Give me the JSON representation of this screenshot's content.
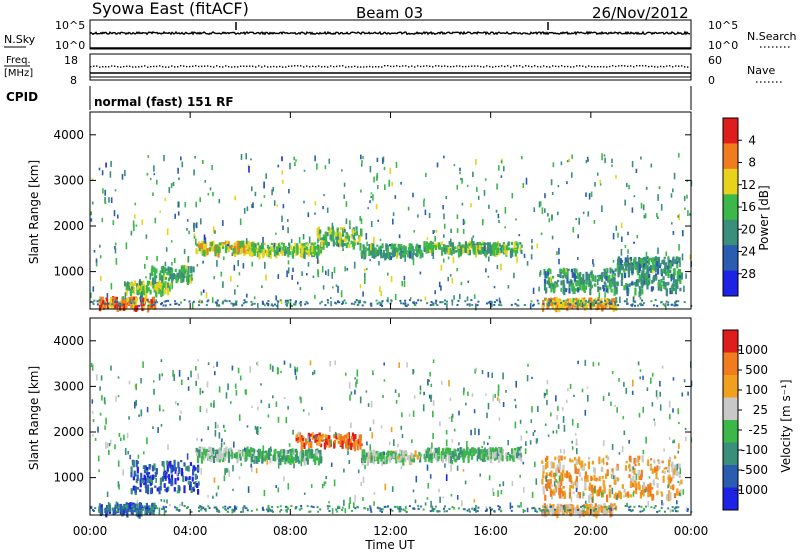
{
  "header": {
    "station": "Syowa East (fitACF)",
    "beam": "Beam 03",
    "date": "26/Nov/2012",
    "mode": "normal (fast) 151 RF"
  },
  "panels": {
    "noise": {
      "left_label": "N.Sky",
      "right_label": "N.Search",
      "left_ticks": [
        "10^5",
        "10^0"
      ],
      "right_ticks": [
        "10^5",
        "10^0"
      ]
    },
    "freq": {
      "left_label_top": "Freq.",
      "left_label_bottom": "[MHz]",
      "right_label": "Nave",
      "left_ticks": [
        "18",
        "8"
      ],
      "right_ticks": [
        "60",
        "0"
      ]
    },
    "cpid_label": "CPID"
  },
  "x_axis": {
    "label": "Time UT",
    "ticks": [
      "00:00",
      "04:00",
      "08:00",
      "12:00",
      "16:00",
      "20:00",
      "00:00"
    ]
  },
  "chart_data": [
    {
      "type": "heatmap",
      "name": "power",
      "ylabel": "Slant Range [km]",
      "yticks": [
        "1000",
        "2000",
        "3000",
        "4000"
      ],
      "ylim": [
        180,
        4500
      ],
      "xlim": [
        0,
        24
      ],
      "colorbar": {
        "label": "Power [dB]",
        "ticks": [
          "4",
          "8",
          "12",
          "16",
          "20",
          "24",
          "28"
        ],
        "colors": [
          "#1e22e6",
          "#2a5db0",
          "#3a8f7a",
          "#3cb84a",
          "#e8d21a",
          "#f07c1e",
          "#e01d1d"
        ],
        "range": [
          0,
          30
        ]
      },
      "bands": [
        {
          "t0": 0.3,
          "t1": 2.6,
          "r0": 220,
          "r1": 420,
          "level": 0.78
        },
        {
          "t0": 1.4,
          "t1": 3.2,
          "r0": 520,
          "r1": 760,
          "level": 0.55
        },
        {
          "t0": 2.4,
          "t1": 4.1,
          "r0": 820,
          "r1": 1100,
          "level": 0.45
        },
        {
          "t0": 4.2,
          "t1": 6.6,
          "r0": 1420,
          "r1": 1640,
          "level": 0.62
        },
        {
          "t0": 6.4,
          "t1": 9.2,
          "r0": 1380,
          "r1": 1600,
          "level": 0.55
        },
        {
          "t0": 9.0,
          "t1": 10.8,
          "r0": 1550,
          "r1": 1950,
          "level": 0.5
        },
        {
          "t0": 10.8,
          "t1": 13.2,
          "r0": 1360,
          "r1": 1580,
          "level": 0.42
        },
        {
          "t0": 13.3,
          "t1": 17.2,
          "r0": 1420,
          "r1": 1630,
          "level": 0.48
        },
        {
          "t0": 18.1,
          "t1": 23.6,
          "r0": 580,
          "r1": 1050,
          "level": 0.4
        },
        {
          "t0": 18.0,
          "t1": 21.0,
          "r0": 220,
          "r1": 400,
          "level": 0.7
        },
        {
          "t0": 21.0,
          "t1": 23.5,
          "r0": 1050,
          "r1": 1300,
          "level": 0.35
        }
      ]
    },
    {
      "type": "heatmap",
      "name": "velocity",
      "ylabel": "Slant Range [km]",
      "yticks": [
        "1000",
        "2000",
        "3000",
        "4000"
      ],
      "ylim": [
        180,
        4500
      ],
      "xlim": [
        0,
        24
      ],
      "colorbar": {
        "label": "Velocity [m s⁻¹]",
        "ticks": [
          "1000",
          "500",
          "100",
          "25",
          "-25",
          "-100",
          "-500",
          "-1000"
        ],
        "colors": [
          "#1e22e6",
          "#2a5db0",
          "#3a8f7a",
          "#3cb84a",
          "#c8c8c8",
          "#f0a01e",
          "#f07c1e",
          "#e01d1d"
        ],
        "range": [
          -1000,
          1000
        ]
      },
      "bands": [
        {
          "t0": 0.3,
          "t1": 2.6,
          "r0": 220,
          "r1": 420,
          "level": 0.2
        },
        {
          "t0": 1.6,
          "t1": 4.3,
          "r0": 700,
          "r1": 1350,
          "level": 0.15
        },
        {
          "t0": 4.2,
          "t1": 6.6,
          "r0": 1420,
          "r1": 1640,
          "level": 0.45
        },
        {
          "t0": 6.4,
          "t1": 9.2,
          "r0": 1380,
          "r1": 1600,
          "level": 0.4
        },
        {
          "t0": 8.2,
          "t1": 10.8,
          "r0": 1700,
          "r1": 1950,
          "level": 0.85
        },
        {
          "t0": 10.8,
          "t1": 13.2,
          "r0": 1380,
          "r1": 1580,
          "level": 0.5
        },
        {
          "t0": 13.3,
          "t1": 17.2,
          "r0": 1420,
          "r1": 1630,
          "level": 0.45
        },
        {
          "t0": 18.0,
          "t1": 23.6,
          "r0": 560,
          "r1": 1450,
          "level": 0.7
        },
        {
          "t0": 18.0,
          "t1": 21.0,
          "r0": 220,
          "r1": 400,
          "level": 0.65
        }
      ]
    }
  ]
}
